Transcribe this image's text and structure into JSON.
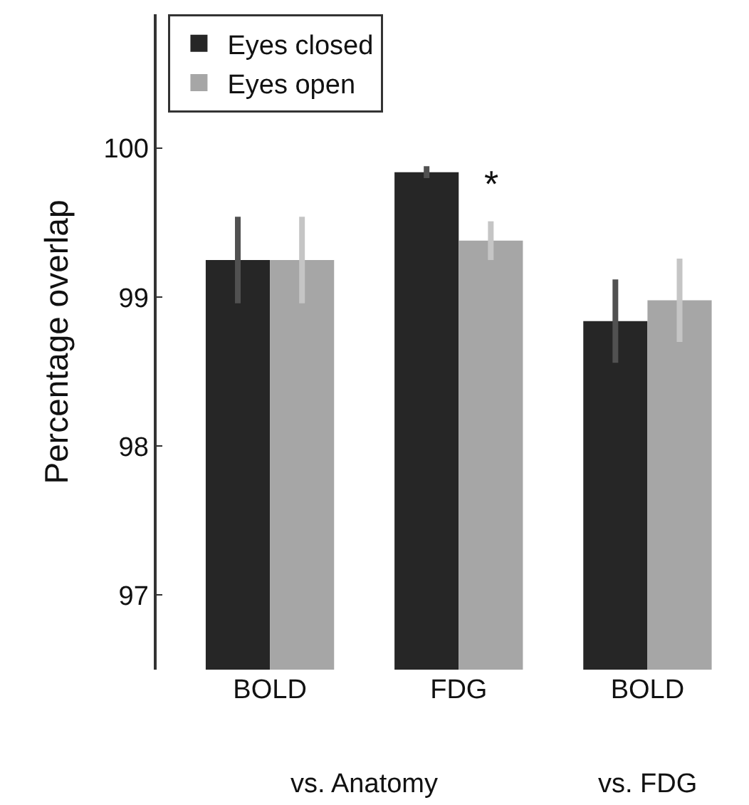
{
  "chart_data": {
    "type": "bar",
    "ylabel": "Percentage overlap",
    "categories": [
      "BOLD",
      "FDG",
      "BOLD"
    ],
    "series": [
      {
        "name": "Eyes closed",
        "color": "#262626",
        "values": [
          99.25,
          99.84,
          98.84
        ],
        "errors": [
          0.29,
          0.04,
          0.28
        ]
      },
      {
        "name": "Eyes open",
        "color": "#a6a6a6",
        "values": [
          99.25,
          99.38,
          98.98
        ],
        "errors": [
          0.29,
          0.13,
          0.28
        ]
      }
    ],
    "ylim": [
      96.5,
      100.9
    ],
    "yticks": [
      97,
      98,
      99,
      100
    ],
    "grid": false,
    "legend": "top left",
    "annotations": [
      "vs. Anatomy",
      "vs. FDG",
      {
        "text": "*",
        "x": "FDG",
        "y": 99.6
      }
    ]
  }
}
